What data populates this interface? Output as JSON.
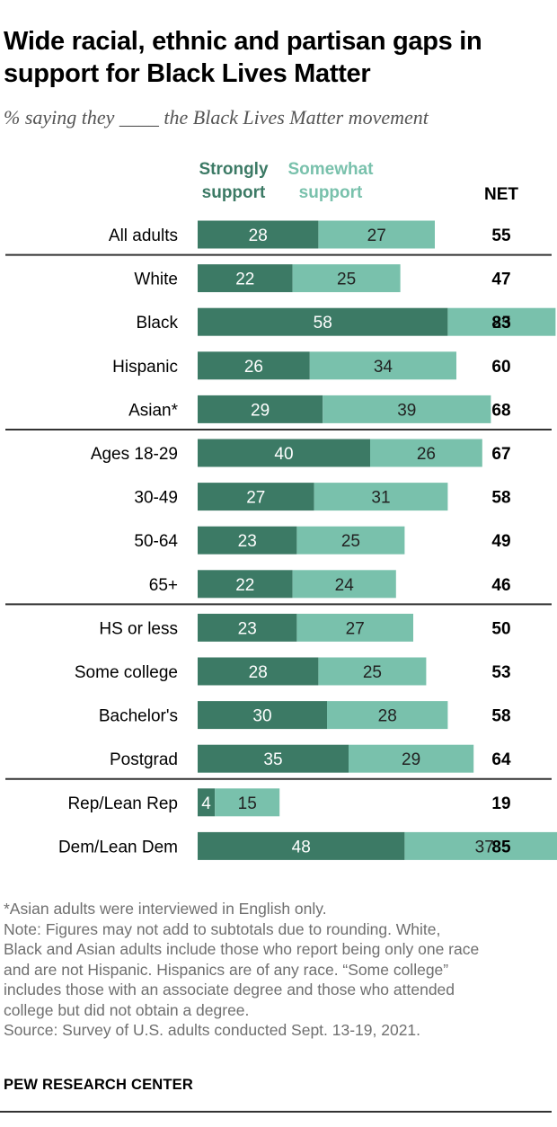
{
  "title": "Wide racial, ethnic and partisan gaps in support for Black Lives Matter",
  "subtitle": "% saying they ____ the Black Lives Matter movement",
  "colors": {
    "strong": "#3c7a65",
    "somewhat": "#79c1ac",
    "rule": "#333333"
  },
  "chart_data": {
    "type": "bar",
    "orientation": "horizontal",
    "stacked": true,
    "series": [
      {
        "name": "Strongly support",
        "color": "#3c7a65"
      },
      {
        "name": "Somewhat support",
        "color": "#79c1ac"
      }
    ],
    "net_header": "NET",
    "groups": [
      {
        "rows": [
          {
            "label": "All adults",
            "strong": 28,
            "somewhat": 27,
            "net": 55
          }
        ]
      },
      {
        "rows": [
          {
            "label": "White",
            "strong": 22,
            "somewhat": 25,
            "net": 47
          },
          {
            "label": "Black",
            "strong": 58,
            "somewhat": 25,
            "net": 83
          },
          {
            "label": "Hispanic",
            "strong": 26,
            "somewhat": 34,
            "net": 60
          },
          {
            "label": "Asian*",
            "strong": 29,
            "somewhat": 39,
            "net": 68
          }
        ]
      },
      {
        "rows": [
          {
            "label": "Ages 18-29",
            "strong": 40,
            "somewhat": 26,
            "net": 67
          },
          {
            "label": "30-49",
            "strong": 27,
            "somewhat": 31,
            "net": 58
          },
          {
            "label": "50-64",
            "strong": 23,
            "somewhat": 25,
            "net": 49
          },
          {
            "label": "65+",
            "strong": 22,
            "somewhat": 24,
            "net": 46
          }
        ]
      },
      {
        "rows": [
          {
            "label": "HS or less",
            "strong": 23,
            "somewhat": 27,
            "net": 50
          },
          {
            "label": "Some college",
            "strong": 28,
            "somewhat": 25,
            "net": 53
          },
          {
            "label": "Bachelor's",
            "strong": 30,
            "somewhat": 28,
            "net": 58
          },
          {
            "label": "Postgrad",
            "strong": 35,
            "somewhat": 29,
            "net": 64
          }
        ]
      },
      {
        "rows": [
          {
            "label": "Rep/Lean Rep",
            "strong": 4,
            "somewhat": 15,
            "net": 19
          },
          {
            "label": "Dem/Lean Dem",
            "strong": 48,
            "somewhat": 37,
            "net": 85
          }
        ]
      }
    ]
  },
  "notes": [
    "*Asian adults were interviewed in English only.",
    "Note: Figures may not add to subtotals due to rounding. White,",
    "Black and Asian adults include those who report being only one race",
    "and are not Hispanic. Hispanics are of any race. “Some college”",
    "includes those with an associate degree and those who attended",
    "college but did not obtain a degree.",
    "Source: Survey of U.S. adults conducted Sept. 13-19, 2021."
  ],
  "brand": "PEW RESEARCH CENTER"
}
